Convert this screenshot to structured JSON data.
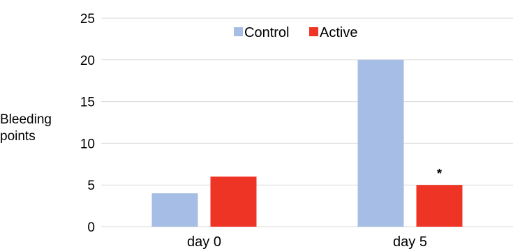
{
  "chart_data": {
    "type": "bar",
    "categories": [
      "day 0",
      "day 5"
    ],
    "series": [
      {
        "name": "Control",
        "color": "#a6bde6",
        "values": [
          4,
          20
        ]
      },
      {
        "name": "Active",
        "color": "#ee3424",
        "values": [
          6,
          5
        ]
      }
    ],
    "ylabel_lines": [
      "Bleeding",
      "points"
    ],
    "ylim": [
      0,
      25
    ],
    "yticks": [
      0,
      5,
      10,
      15,
      20,
      25
    ],
    "grid": true,
    "legend": "top-center",
    "annotations": [
      {
        "text": "*",
        "category_index": 1,
        "series_index": 1
      }
    ]
  }
}
